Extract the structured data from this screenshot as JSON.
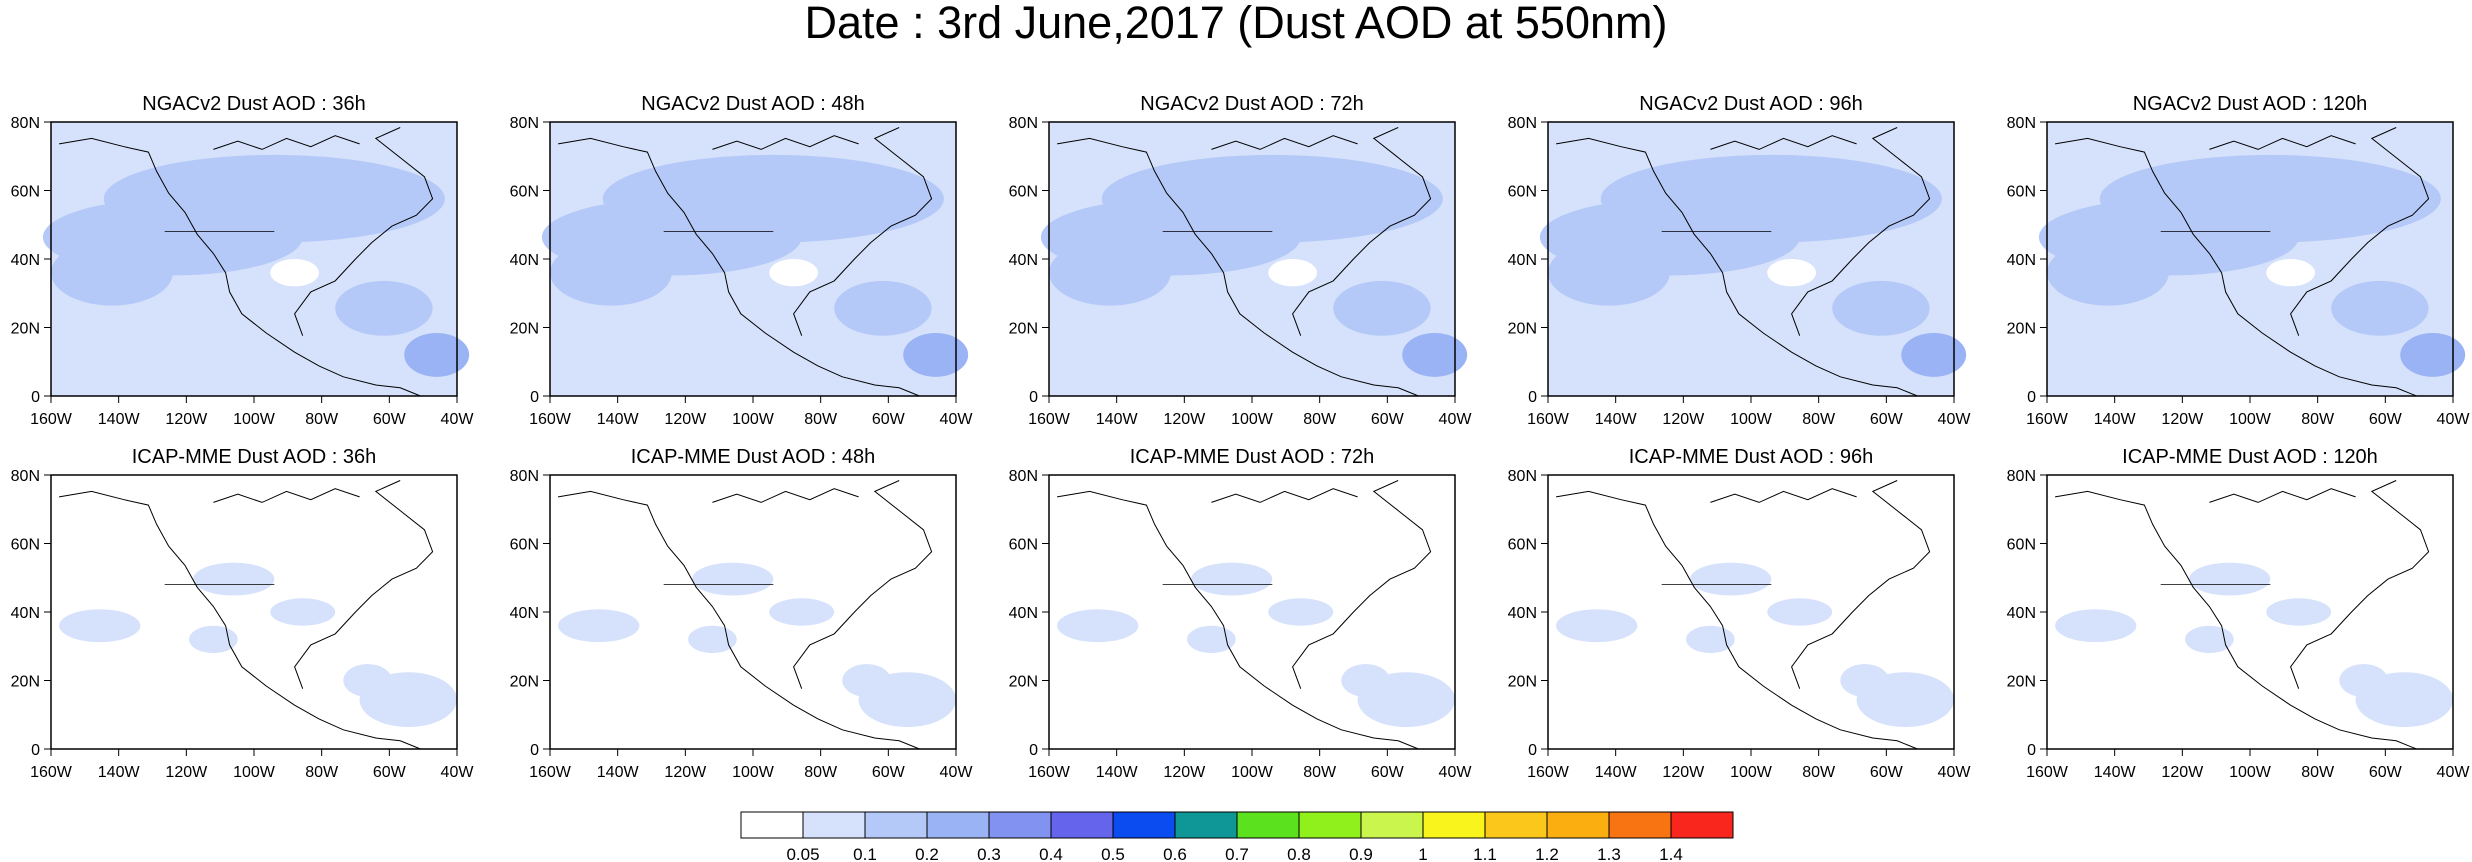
{
  "title": "Date : 3rd June,2017 (Dust AOD at 550nm)",
  "lat_labels": [
    "80N",
    "60N",
    "40N",
    "20N",
    "0"
  ],
  "lon_labels": [
    "160W",
    "140W",
    "120W",
    "100W",
    "80W",
    "60W",
    "40W"
  ],
  "panels": [
    {
      "title": "NGACv2 Dust AOD : 36h"
    },
    {
      "title": "NGACv2 Dust AOD : 48h"
    },
    {
      "title": "NGACv2 Dust AOD : 72h"
    },
    {
      "title": "NGACv2 Dust AOD : 96h"
    },
    {
      "title": "NGACv2 Dust AOD : 120h"
    },
    {
      "title": "ICAP-MME Dust AOD : 36h"
    },
    {
      "title": "ICAP-MME Dust AOD : 48h"
    },
    {
      "title": "ICAP-MME Dust AOD : 72h"
    },
    {
      "title": "ICAP-MME Dust AOD : 96h"
    },
    {
      "title": "ICAP-MME Dust AOD : 120h"
    }
  ],
  "colorbar": {
    "labels": [
      "0.05",
      "0.1",
      "0.2",
      "0.3",
      "0.4",
      "0.5",
      "0.6",
      "0.7",
      "0.8",
      "0.9",
      "1",
      "1.1",
      "1.2",
      "1.3",
      "1.4"
    ],
    "colors": [
      "#ffffff",
      "#d6e2fb",
      "#b5c9f8",
      "#9ab3f5",
      "#8292f1",
      "#6464ec",
      "#0a4cf0",
      "#0f9696",
      "#5be11d",
      "#8ff01c",
      "#c9f54d",
      "#f9f51c",
      "#fbc71a",
      "#fbae0f",
      "#f87413",
      "#f8261c"
    ]
  }
}
